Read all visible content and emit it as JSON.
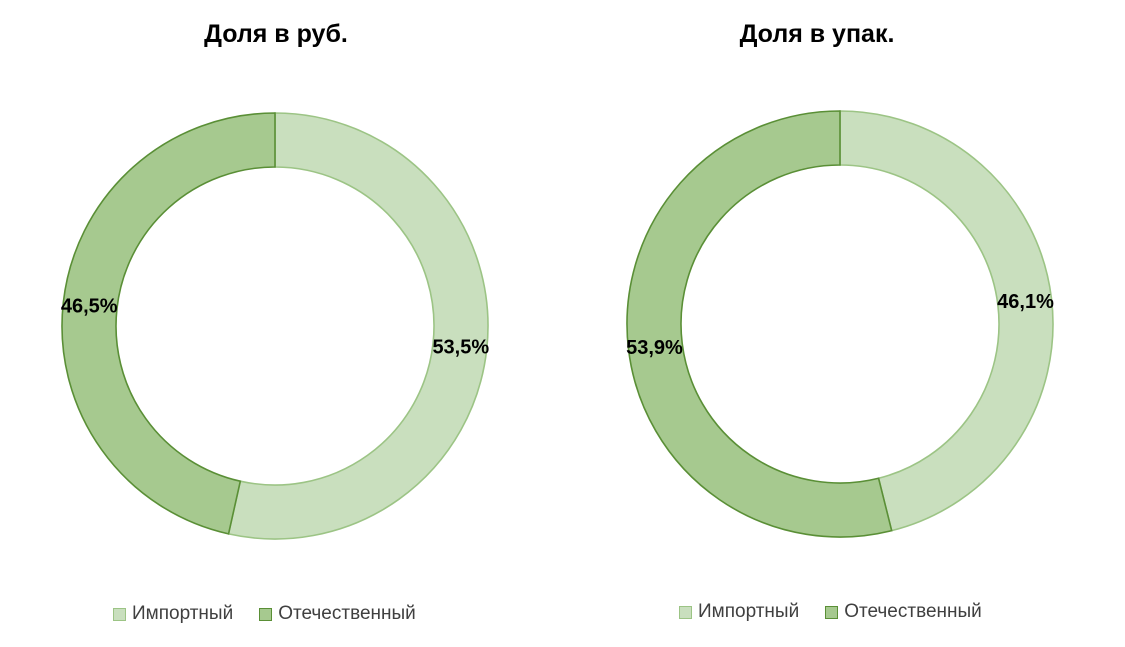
{
  "chart_data": [
    {
      "type": "donut",
      "title": "Доля в руб.",
      "categories": [
        "Импортный",
        "Отечественный"
      ],
      "values": [
        53.5,
        46.5
      ],
      "labels": [
        "53,5%",
        "46,5%"
      ],
      "colors": [
        "#c9dfbe",
        "#a6c98f"
      ],
      "stroke_colors": [
        "#9cc485",
        "#5a8f36"
      ],
      "legend_position": "bottom"
    },
    {
      "type": "donut",
      "title": "Доля в упак.",
      "categories": [
        "Импортный",
        "Отечественный"
      ],
      "values": [
        46.1,
        53.9
      ],
      "labels": [
        "46,1%",
        "53,9%"
      ],
      "colors": [
        "#c9dfbe",
        "#a6c98f"
      ],
      "stroke_colors": [
        "#9cc485",
        "#5a8f36"
      ],
      "legend_position": "bottom"
    }
  ]
}
